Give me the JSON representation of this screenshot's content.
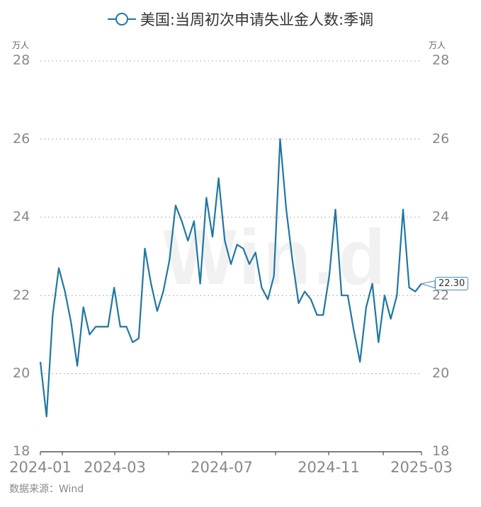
{
  "chart_data": {
    "type": "line",
    "title": "美国:当周初次申请失业金人数:季调",
    "xlabel": "",
    "ylabel": "万人",
    "ylim": [
      18,
      28
    ],
    "y_ticks": [
      18,
      20,
      22,
      24,
      26,
      28
    ],
    "x_tick_labels": [
      "2024-01",
      "2024-03",
      "2024-07",
      "2024-11",
      "2025-03"
    ],
    "grid": "horizontal dotted",
    "legend_position": "top-center",
    "series": [
      {
        "name": "美国:当周初次申请失业金人数:季调",
        "color": "#1f77a4",
        "values": [
          20.3,
          18.9,
          21.5,
          22.7,
          22.1,
          21.3,
          20.2,
          21.7,
          21.0,
          21.2,
          21.2,
          21.2,
          22.2,
          21.2,
          21.2,
          20.8,
          20.9,
          23.2,
          22.3,
          21.6,
          22.1,
          22.9,
          24.3,
          23.9,
          23.4,
          23.9,
          22.3,
          24.5,
          23.5,
          25.0,
          23.4,
          22.8,
          23.3,
          23.2,
          22.8,
          23.1,
          22.2,
          21.9,
          22.5,
          26.0,
          24.2,
          22.9,
          21.8,
          22.1,
          21.9,
          21.5,
          21.5,
          22.5,
          24.2,
          22.0,
          22.0,
          21.1,
          20.3,
          21.7,
          22.3,
          20.8,
          22.0,
          21.4,
          22.0,
          24.2,
          22.2,
          22.1,
          22.3
        ]
      }
    ],
    "annotations": [
      {
        "text": "22.30",
        "at": "last point"
      }
    ]
  },
  "legend": {
    "label": "美国:当周初次申请失业金人数:季调"
  },
  "axis": {
    "left_unit": "万人",
    "right_unit": "万人",
    "y_labels": [
      "28",
      "26",
      "24",
      "22",
      "20",
      "18"
    ],
    "x_labels": [
      "2024-01",
      "2024-03",
      "2024-07",
      "2024-11",
      "2025-03"
    ]
  },
  "end_label": "22.30",
  "watermark": "Wind",
  "source": "数据来源：Wind"
}
